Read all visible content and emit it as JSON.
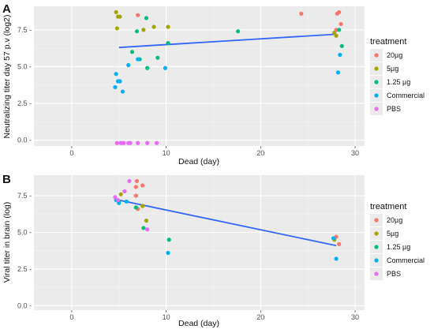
{
  "chart_data": [
    {
      "panel": "A",
      "type": "scatter",
      "xlabel": "Dead (day)",
      "ylabel": "Neutralizing titer day 57 p.v (log2)",
      "xlim": [
        -4,
        31
      ],
      "ylim": [
        -0.4,
        9.1
      ],
      "xticks": [
        0,
        10,
        20,
        30
      ],
      "yticks": [
        0.0,
        2.5,
        5.0,
        7.5
      ],
      "ytick_labels": [
        "0.0 -",
        "2.5 -",
        "5.0 -",
        "7.5 -"
      ],
      "grid": true,
      "legend_title": "treatment",
      "legend_placement": "right",
      "series": [
        {
          "name": "20µg",
          "color": "#F8766D",
          "points": [
            [
              7.0,
              8.5
            ],
            [
              24.3,
              8.6
            ],
            [
              28.1,
              8.6
            ],
            [
              28.3,
              8.7
            ],
            [
              28.5,
              7.9
            ],
            [
              28.0,
              7.5
            ]
          ]
        },
        {
          "name": "5µg",
          "color": "#A3A500",
          "points": [
            [
              4.7,
              8.7
            ],
            [
              4.9,
              8.4
            ],
            [
              5.1,
              8.4
            ],
            [
              4.8,
              7.6
            ],
            [
              7.6,
              7.5
            ],
            [
              8.7,
              7.7
            ],
            [
              10.2,
              7.7
            ],
            [
              27.8,
              7.3
            ],
            [
              28.0,
              7.1
            ]
          ]
        },
        {
          "name": "1.25 µg",
          "color": "#00BF7D",
          "points": [
            [
              7.9,
              8.3
            ],
            [
              6.9,
              7.4
            ],
            [
              6.4,
              6.0
            ],
            [
              7.2,
              5.5
            ],
            [
              8.0,
              4.9
            ],
            [
              9.1,
              5.6
            ],
            [
              10.2,
              6.6
            ],
            [
              17.6,
              7.4
            ],
            [
              28.3,
              7.5
            ],
            [
              28.6,
              6.4
            ]
          ]
        },
        {
          "name": "Commercial",
          "color": "#00B0F6",
          "points": [
            [
              4.7,
              4.5
            ],
            [
              4.9,
              4.0
            ],
            [
              5.1,
              4.0
            ],
            [
              4.6,
              3.6
            ],
            [
              5.4,
              3.3
            ],
            [
              6.0,
              5.1
            ],
            [
              7.0,
              5.5
            ],
            [
              9.9,
              4.9
            ],
            [
              28.4,
              5.8
            ],
            [
              28.2,
              4.6
            ]
          ]
        },
        {
          "name": "PBS",
          "color": "#E76BF3",
          "points": [
            [
              4.8,
              -0.2
            ],
            [
              5.2,
              -0.2
            ],
            [
              5.5,
              -0.2
            ],
            [
              6.0,
              -0.2
            ],
            [
              6.2,
              -0.2
            ],
            [
              7.0,
              -0.2
            ],
            [
              8.0,
              -0.2
            ],
            [
              9.0,
              -0.2
            ]
          ]
        }
      ],
      "fit_line": {
        "color": "#3366FF",
        "x": [
          5.0,
          28.0
        ],
        "y": [
          6.3,
          7.2
        ]
      }
    },
    {
      "panel": "B",
      "type": "scatter",
      "xlabel": "Dead (day)",
      "ylabel": "Viral titer in brain (log)",
      "xlim": [
        -4,
        31
      ],
      "ylim": [
        -0.3,
        8.9
      ],
      "xticks": [
        0,
        10,
        20,
        30
      ],
      "yticks": [
        0.0,
        2.5,
        5.0,
        7.5
      ],
      "ytick_labels": [
        "0.0 -",
        "2.5 -",
        "5.0 -",
        "7.5 -"
      ],
      "grid": true,
      "legend_title": "treatment",
      "legend_placement": "right",
      "series": [
        {
          "name": "20µg",
          "color": "#F8766D",
          "points": [
            [
              6.9,
              8.5
            ],
            [
              7.5,
              8.2
            ],
            [
              6.8,
              8.1
            ],
            [
              6.8,
              7.5
            ],
            [
              7.0,
              6.6
            ],
            [
              28.0,
              4.7
            ],
            [
              28.3,
              4.2
            ]
          ]
        },
        {
          "name": "5µg",
          "color": "#A3A500",
          "points": [
            [
              5.2,
              7.6
            ],
            [
              7.5,
              6.8
            ],
            [
              7.9,
              5.8
            ],
            [
              27.8,
              4.5
            ]
          ]
        },
        {
          "name": "1.25 µg",
          "color": "#00BF7D",
          "points": [
            [
              5.0,
              7.1
            ],
            [
              6.8,
              6.7
            ],
            [
              7.6,
              5.3
            ],
            [
              10.3,
              4.5
            ]
          ]
        },
        {
          "name": "Commercial",
          "color": "#00B0F6",
          "points": [
            [
              4.7,
              7.2
            ],
            [
              5.0,
              7.0
            ],
            [
              5.8,
              7.1
            ],
            [
              10.2,
              3.6
            ],
            [
              28.0,
              3.2
            ],
            [
              27.7,
              4.6
            ]
          ]
        },
        {
          "name": "PBS",
          "color": "#E76BF3",
          "points": [
            [
              4.6,
              7.4
            ],
            [
              4.9,
              7.2
            ],
            [
              5.6,
              7.8
            ],
            [
              6.1,
              8.5
            ],
            [
              8.0,
              5.2
            ]
          ]
        }
      ],
      "fit_line": {
        "color": "#3366FF",
        "x": [
          5.0,
          28.0
        ],
        "y": [
          7.2,
          4.1
        ]
      }
    }
  ]
}
